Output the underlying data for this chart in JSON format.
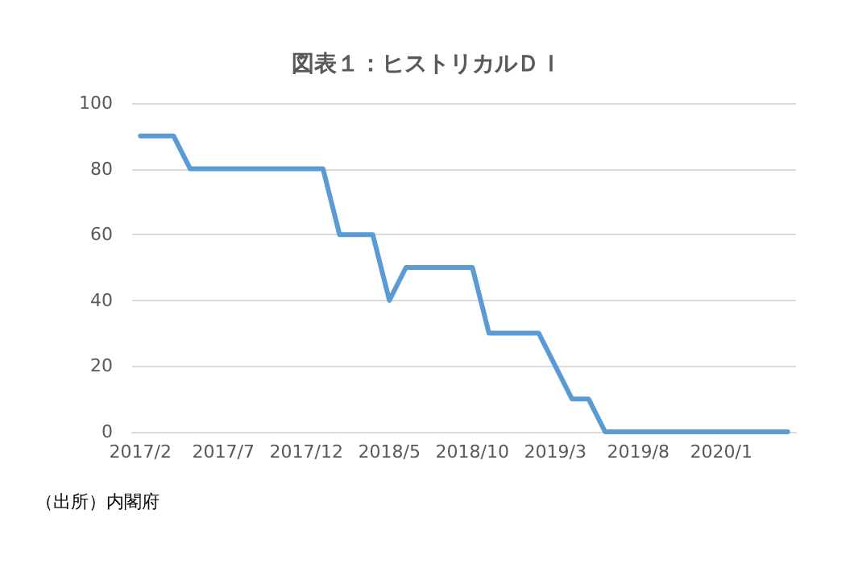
{
  "chart_data": {
    "type": "line",
    "title": "図表１：ヒストリカルＤＩ",
    "annotations": [
      "（出所）内閣府"
    ],
    "categories": [
      "2017/2",
      null,
      null,
      null,
      null,
      "2017/7",
      null,
      null,
      null,
      null,
      "2017/12",
      null,
      null,
      null,
      null,
      "2018/5",
      null,
      null,
      null,
      null,
      "2018/10",
      null,
      null,
      null,
      null,
      "2019/3",
      null,
      null,
      null,
      null,
      "2019/8",
      null,
      null,
      null,
      null,
      "2020/1",
      null,
      null,
      null,
      null
    ],
    "series": [
      {
        "color": "#5b9bd5",
        "values": [
          90,
          90,
          90,
          80,
          80,
          80,
          80,
          80,
          80,
          80,
          80,
          80,
          60,
          60,
          60,
          40,
          50,
          50,
          50,
          50,
          50,
          30,
          30,
          30,
          30,
          20,
          10,
          10,
          0,
          0,
          0,
          0,
          0,
          0,
          0,
          0,
          0,
          0,
          0,
          0
        ]
      }
    ],
    "ylim": [
      0,
      100
    ],
    "yticks": [
      0,
      20,
      40,
      60,
      80,
      100
    ],
    "grid": "y",
    "marker": "none",
    "line_style": "solid"
  }
}
